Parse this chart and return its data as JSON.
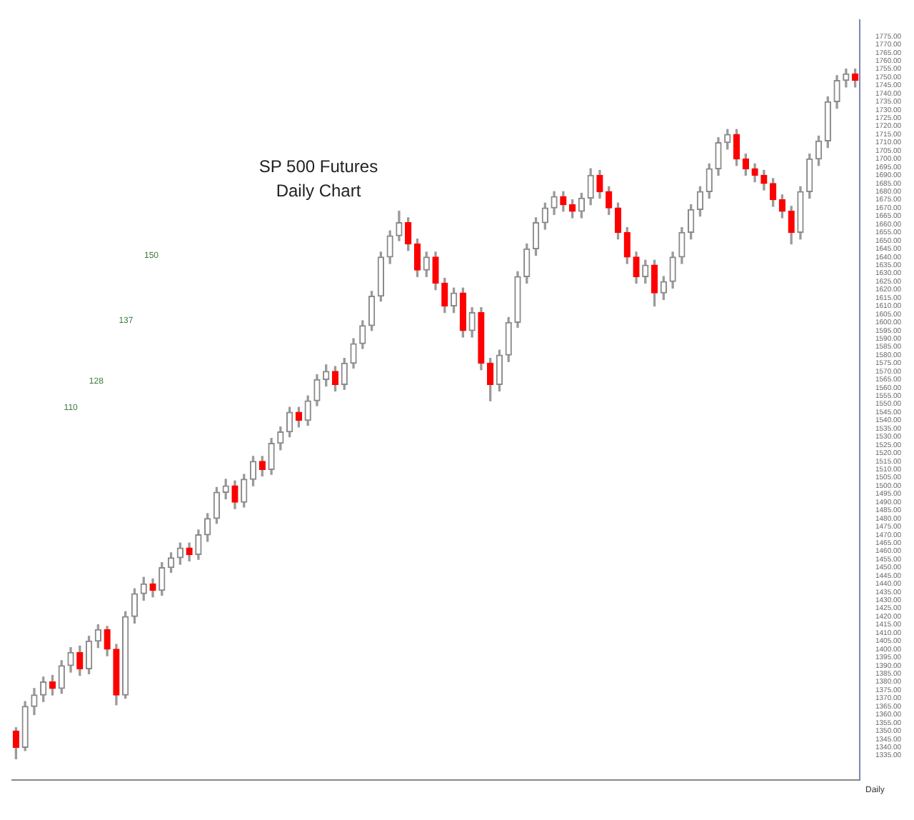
{
  "chart_data": {
    "type": "candlestick",
    "title": "SP 500 Futures",
    "subtitle": "Daily Chart",
    "annotations": [
      "110",
      "128",
      "137",
      "150",
      "Daily"
    ],
    "categories": [
      null,
      null,
      null,
      null,
      null,
      null,
      null,
      null,
      null,
      null,
      null,
      null,
      null,
      null,
      null,
      null,
      null,
      null,
      null,
      null,
      null,
      null,
      null,
      null,
      null,
      null,
      null,
      null,
      null,
      null,
      null,
      null,
      null,
      null,
      null,
      null,
      null,
      null,
      null,
      null,
      null,
      null,
      null,
      null,
      null,
      null,
      null,
      null,
      null,
      null,
      null,
      null,
      null,
      null,
      null,
      null,
      null,
      null,
      null,
      null,
      null,
      null,
      null,
      null,
      null,
      null,
      null,
      null,
      null,
      null,
      null,
      null,
      null,
      null,
      null,
      null,
      null,
      null,
      null,
      null,
      null,
      null,
      null,
      null,
      null,
      null,
      null,
      null,
      null,
      null,
      null,
      null,
      null
    ],
    "ohlc": [
      [
        1350,
        1352,
        1333,
        1340
      ],
      [
        1340,
        1368,
        1338,
        1365
      ],
      [
        1365,
        1376,
        1360,
        1372
      ],
      [
        1372,
        1383,
        1368,
        1380
      ],
      [
        1380,
        1384,
        1372,
        1376
      ],
      [
        1376,
        1393,
        1373,
        1390
      ],
      [
        1390,
        1401,
        1386,
        1398
      ],
      [
        1398,
        1402,
        1384,
        1388
      ],
      [
        1388,
        1408,
        1385,
        1405
      ],
      [
        1405,
        1415,
        1401,
        1412
      ],
      [
        1412,
        1414,
        1396,
        1400
      ],
      [
        1400,
        1403,
        1366,
        1372
      ],
      [
        1372,
        1423,
        1370,
        1420
      ],
      [
        1420,
        1437,
        1416,
        1434
      ],
      [
        1434,
        1444,
        1430,
        1440
      ],
      [
        1440,
        1443,
        1432,
        1436
      ],
      [
        1436,
        1453,
        1433,
        1450
      ],
      [
        1450,
        1459,
        1447,
        1456
      ],
      [
        1456,
        1465,
        1452,
        1462
      ],
      [
        1462,
        1465,
        1454,
        1458
      ],
      [
        1458,
        1473,
        1455,
        1470
      ],
      [
        1470,
        1483,
        1466,
        1480
      ],
      [
        1480,
        1499,
        1477,
        1496
      ],
      [
        1496,
        1504,
        1492,
        1500
      ],
      [
        1500,
        1503,
        1486,
        1490
      ],
      [
        1490,
        1507,
        1487,
        1504
      ],
      [
        1504,
        1518,
        1500,
        1515
      ],
      [
        1515,
        1518,
        1506,
        1510
      ],
      [
        1510,
        1529,
        1507,
        1526
      ],
      [
        1526,
        1536,
        1522,
        1533
      ],
      [
        1533,
        1548,
        1530,
        1545
      ],
      [
        1545,
        1548,
        1536,
        1540
      ],
      [
        1540,
        1555,
        1537,
        1552
      ],
      [
        1552,
        1568,
        1549,
        1565
      ],
      [
        1565,
        1574,
        1561,
        1570
      ],
      [
        1570,
        1573,
        1558,
        1562
      ],
      [
        1562,
        1578,
        1559,
        1575
      ],
      [
        1575,
        1590,
        1572,
        1587
      ],
      [
        1587,
        1601,
        1584,
        1598
      ],
      [
        1598,
        1619,
        1595,
        1616
      ],
      [
        1616,
        1643,
        1613,
        1640
      ],
      [
        1640,
        1656,
        1636,
        1653
      ],
      [
        1653,
        1668,
        1650,
        1661
      ],
      [
        1661,
        1664,
        1644,
        1648
      ],
      [
        1648,
        1651,
        1628,
        1632
      ],
      [
        1632,
        1643,
        1628,
        1640
      ],
      [
        1640,
        1643,
        1620,
        1624
      ],
      [
        1624,
        1627,
        1606,
        1610
      ],
      [
        1610,
        1621,
        1606,
        1618
      ],
      [
        1618,
        1621,
        1591,
        1595
      ],
      [
        1595,
        1609,
        1591,
        1606
      ],
      [
        1606,
        1609,
        1571,
        1575
      ],
      [
        1575,
        1578,
        1552,
        1562
      ],
      [
        1562,
        1583,
        1558,
        1580
      ],
      [
        1580,
        1603,
        1576,
        1600
      ],
      [
        1600,
        1631,
        1597,
        1628
      ],
      [
        1628,
        1648,
        1624,
        1645
      ],
      [
        1645,
        1664,
        1641,
        1661
      ],
      [
        1661,
        1673,
        1657,
        1670
      ],
      [
        1670,
        1680,
        1666,
        1677
      ],
      [
        1677,
        1680,
        1668,
        1672
      ],
      [
        1672,
        1675,
        1664,
        1668
      ],
      [
        1668,
        1679,
        1664,
        1676
      ],
      [
        1676,
        1694,
        1672,
        1690
      ],
      [
        1690,
        1693,
        1676,
        1680
      ],
      [
        1680,
        1683,
        1666,
        1670
      ],
      [
        1670,
        1673,
        1651,
        1655
      ],
      [
        1655,
        1658,
        1636,
        1640
      ],
      [
        1640,
        1643,
        1624,
        1628
      ],
      [
        1628,
        1638,
        1624,
        1635
      ],
      [
        1635,
        1638,
        1610,
        1618
      ],
      [
        1618,
        1628,
        1614,
        1625
      ],
      [
        1625,
        1643,
        1621,
        1640
      ],
      [
        1640,
        1658,
        1636,
        1655
      ],
      [
        1655,
        1672,
        1651,
        1669
      ],
      [
        1669,
        1683,
        1665,
        1680
      ],
      [
        1680,
        1697,
        1676,
        1694
      ],
      [
        1694,
        1713,
        1690,
        1710
      ],
      [
        1710,
        1718,
        1706,
        1715
      ],
      [
        1715,
        1718,
        1696,
        1700
      ],
      [
        1700,
        1703,
        1690,
        1694
      ],
      [
        1694,
        1697,
        1686,
        1690
      ],
      [
        1690,
        1693,
        1681,
        1685
      ],
      [
        1685,
        1688,
        1671,
        1675
      ],
      [
        1675,
        1678,
        1664,
        1668
      ],
      [
        1668,
        1671,
        1648,
        1655
      ],
      [
        1655,
        1683,
        1651,
        1680
      ],
      [
        1680,
        1703,
        1676,
        1700
      ],
      [
        1700,
        1714,
        1696,
        1711
      ],
      [
        1711,
        1738,
        1707,
        1735
      ],
      [
        1735,
        1751,
        1731,
        1748
      ],
      [
        1748,
        1755,
        1744,
        1752
      ],
      [
        1752,
        1755,
        1744,
        1748
      ]
    ],
    "colors": [
      "#ff0000",
      "#8a8a8a",
      "#8a8a8a",
      "#8a8a8a",
      "#ff0000",
      "#8a8a8a",
      "#8a8a8a",
      "#ff0000",
      "#8a8a8a",
      "#8a8a8a",
      "#ff0000",
      "#ff0000",
      "#8a8a8a",
      "#8a8a8a",
      "#8a8a8a",
      "#ff0000",
      "#8a8a8a",
      "#8a8a8a",
      "#8a8a8a",
      "#ff0000",
      "#8a8a8a",
      "#8a8a8a",
      "#8a8a8a",
      "#8a8a8a",
      "#ff0000",
      "#8a8a8a",
      "#8a8a8a",
      "#ff0000",
      "#8a8a8a",
      "#8a8a8a",
      "#8a8a8a",
      "#ff0000",
      "#8a8a8a",
      "#8a8a8a",
      "#8a8a8a",
      "#ff0000",
      "#8a8a8a",
      "#8a8a8a",
      "#8a8a8a",
      "#8a8a8a",
      "#8a8a8a",
      "#8a8a8a",
      "#8a8a8a",
      "#ff0000",
      "#ff0000",
      "#8a8a8a",
      "#ff0000",
      "#ff0000",
      "#8a8a8a",
      "#ff0000",
      "#8a8a8a",
      "#ff0000",
      "#ff0000",
      "#8a8a8a",
      "#8a8a8a",
      "#8a8a8a",
      "#8a8a8a",
      "#8a8a8a",
      "#8a8a8a",
      "#8a8a8a",
      "#ff0000",
      "#ff0000",
      "#8a8a8a",
      "#8a8a8a",
      "#ff0000",
      "#ff0000",
      "#ff0000",
      "#ff0000",
      "#ff0000",
      "#8a8a8a",
      "#ff0000",
      "#8a8a8a",
      "#8a8a8a",
      "#8a8a8a",
      "#8a8a8a",
      "#8a8a8a",
      "#8a8a8a",
      "#8a8a8a",
      "#8a8a8a",
      "#ff0000",
      "#ff0000",
      "#ff0000",
      "#ff0000",
      "#ff0000",
      "#ff0000",
      "#ff0000",
      "#8a8a8a",
      "#8a8a8a",
      "#8a8a8a",
      "#8a8a8a",
      "#8a8a8a",
      "#8a8a8a",
      "#ff0000"
    ],
    "ylim": [
      1320,
      1785
    ],
    "yticks": [
      {
        "value": 1335,
        "label": "1335.00"
      },
      {
        "value": 1340,
        "label": "1340.00"
      },
      {
        "value": 1345,
        "label": "1345.00"
      },
      {
        "value": 1350,
        "label": "1350.00"
      },
      {
        "value": 1355,
        "label": "1355.00"
      },
      {
        "value": 1360,
        "label": "1360.00"
      },
      {
        "value": 1365,
        "label": "1365.00"
      },
      {
        "value": 1370,
        "label": "1370.00"
      },
      {
        "value": 1375,
        "label": "1375.00"
      },
      {
        "value": 1380,
        "label": "1380.00"
      },
      {
        "value": 1385,
        "label": "1385.00"
      },
      {
        "value": 1390,
        "label": "1390.00"
      },
      {
        "value": 1395,
        "label": "1395.00"
      },
      {
        "value": 1400,
        "label": "1400.00"
      },
      {
        "value": 1405,
        "label": "1405.00"
      },
      {
        "value": 1410,
        "label": "1410.00"
      },
      {
        "value": 1415,
        "label": "1415.00"
      },
      {
        "value": 1420,
        "label": "1420.00"
      },
      {
        "value": 1425,
        "label": "1425.00"
      },
      {
        "value": 1430,
        "label": "1430.00"
      },
      {
        "value": 1435,
        "label": "1435.00"
      },
      {
        "value": 1440,
        "label": "1440.00"
      },
      {
        "value": 1445,
        "label": "1445.00"
      },
      {
        "value": 1450,
        "label": "1450.00"
      },
      {
        "value": 1455,
        "label": "1455.00"
      },
      {
        "value": 1460,
        "label": "1460.00"
      },
      {
        "value": 1465,
        "label": "1465.00"
      },
      {
        "value": 1470,
        "label": "1470.00"
      },
      {
        "value": 1475,
        "label": "1475.00"
      },
      {
        "value": 1480,
        "label": "1480.00"
      },
      {
        "value": 1485,
        "label": "1485.00"
      },
      {
        "value": 1490,
        "label": "1490.00"
      },
      {
        "value": 1495,
        "label": "1495.00"
      },
      {
        "value": 1500,
        "label": "1500.00"
      },
      {
        "value": 1505,
        "label": "1505.00"
      },
      {
        "value": 1510,
        "label": "1510.00"
      },
      {
        "value": 1515,
        "label": "1515.00"
      },
      {
        "value": 1520,
        "label": "1520.00"
      },
      {
        "value": 1525,
        "label": "1525.00"
      },
      {
        "value": 1530,
        "label": "1530.00"
      },
      {
        "value": 1535,
        "label": "1535.00"
      },
      {
        "value": 1540,
        "label": "1540.00"
      },
      {
        "value": 1545,
        "label": "1545.00"
      },
      {
        "value": 1550,
        "label": "1550.00"
      },
      {
        "value": 1555,
        "label": "1555.00"
      },
      {
        "value": 1560,
        "label": "1560.00"
      },
      {
        "value": 1565,
        "label": "1565.00"
      },
      {
        "value": 1570,
        "label": "1570.00"
      },
      {
        "value": 1575,
        "label": "1575.00"
      },
      {
        "value": 1580,
        "label": "1580.00"
      },
      {
        "value": 1585,
        "label": "1585.00"
      },
      {
        "value": 1590,
        "label": "1590.00"
      },
      {
        "value": 1595,
        "label": "1595.00"
      },
      {
        "value": 1600,
        "label": "1600.00"
      },
      {
        "value": 1605,
        "label": "1605.00"
      },
      {
        "value": 1610,
        "label": "1610.00"
      },
      {
        "value": 1615,
        "label": "1615.00"
      },
      {
        "value": 1620,
        "label": "1620.00"
      },
      {
        "value": 1625,
        "label": "1625.00"
      },
      {
        "value": 1630,
        "label": "1630.00"
      },
      {
        "value": 1635,
        "label": "1635.00"
      },
      {
        "value": 1640,
        "label": "1640.00"
      },
      {
        "value": 1645,
        "label": "1645.00"
      },
      {
        "value": 1650,
        "label": "1650.00"
      },
      {
        "value": 1655,
        "label": "1655.00"
      },
      {
        "value": 1660,
        "label": "1660.00"
      },
      {
        "value": 1665,
        "label": "1665.00"
      },
      {
        "value": 1670,
        "label": "1670.00"
      },
      {
        "value": 1675,
        "label": "1675.00"
      },
      {
        "value": 1680,
        "label": "1680.00"
      },
      {
        "value": 1685,
        "label": "1685.00"
      },
      {
        "value": 1690,
        "label": "1690.00"
      },
      {
        "value": 1695,
        "label": "1695.00"
      },
      {
        "value": 1700,
        "label": "1700.00"
      },
      {
        "value": 1705,
        "label": "1705.00"
      },
      {
        "value": 1710,
        "label": "1710.00"
      },
      {
        "value": 1715,
        "label": "1715.00"
      },
      {
        "value": 1720,
        "label": "1720.00"
      },
      {
        "value": 1725,
        "label": "1725.00"
      },
      {
        "value": 1730,
        "label": "1730.00"
      },
      {
        "value": 1735,
        "label": "1735.00"
      },
      {
        "value": 1740,
        "label": "1740.00"
      },
      {
        "value": 1745,
        "label": "1745.00"
      },
      {
        "value": 1750,
        "label": "1750.00"
      },
      {
        "value": 1755,
        "label": "1755.00"
      },
      {
        "value": 1760,
        "label": "1760.00"
      },
      {
        "value": 1765,
        "label": "1765.00"
      },
      {
        "value": 1770,
        "label": "1770.00"
      },
      {
        "value": 1775,
        "label": "1775.00"
      }
    ],
    "tick_labels": "y"
  }
}
